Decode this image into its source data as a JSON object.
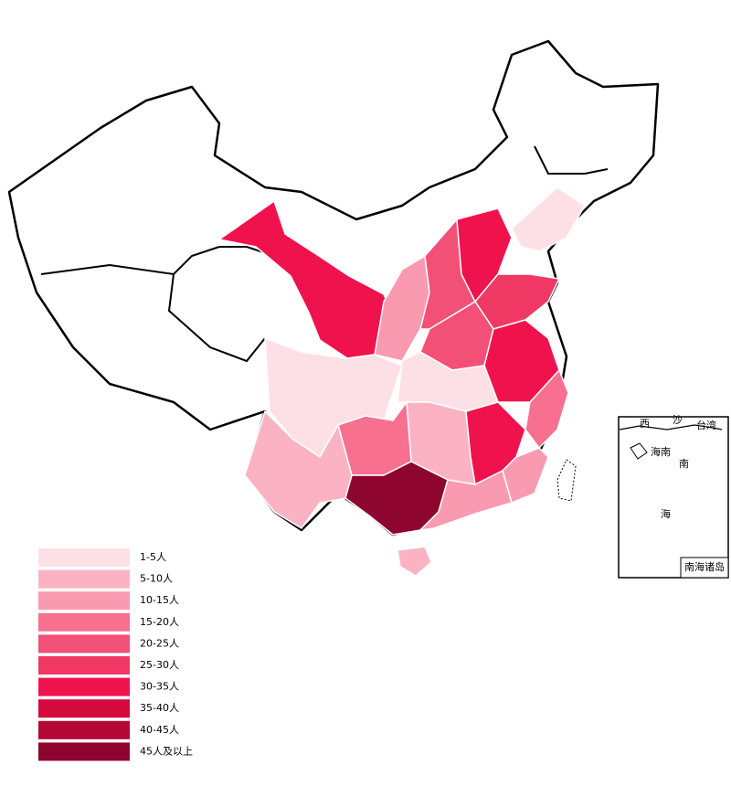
{
  "legend": {
    "items": [
      {
        "label": "1-5人",
        "color": "#fde0e6"
      },
      {
        "label": "5-10人",
        "color": "#fbb3c3"
      },
      {
        "label": "10-15人",
        "color": "#fa9ab0"
      },
      {
        "label": "15-20人",
        "color": "#f77090"
      },
      {
        "label": "20-25人",
        "color": "#f25077"
      },
      {
        "label": "25-30人",
        "color": "#ef3864"
      },
      {
        "label": "30-35人",
        "color": "#f0124c"
      },
      {
        "label": "35-40人",
        "color": "#d40a3e"
      },
      {
        "label": "40-45人",
        "color": "#b50836"
      },
      {
        "label": "45人及以上",
        "color": "#8e0530"
      }
    ]
  },
  "inset": {
    "labels": [
      "西",
      "沙",
      "台湾",
      "海南",
      "南",
      "海"
    ],
    "title": "南海诸岛"
  }
}
